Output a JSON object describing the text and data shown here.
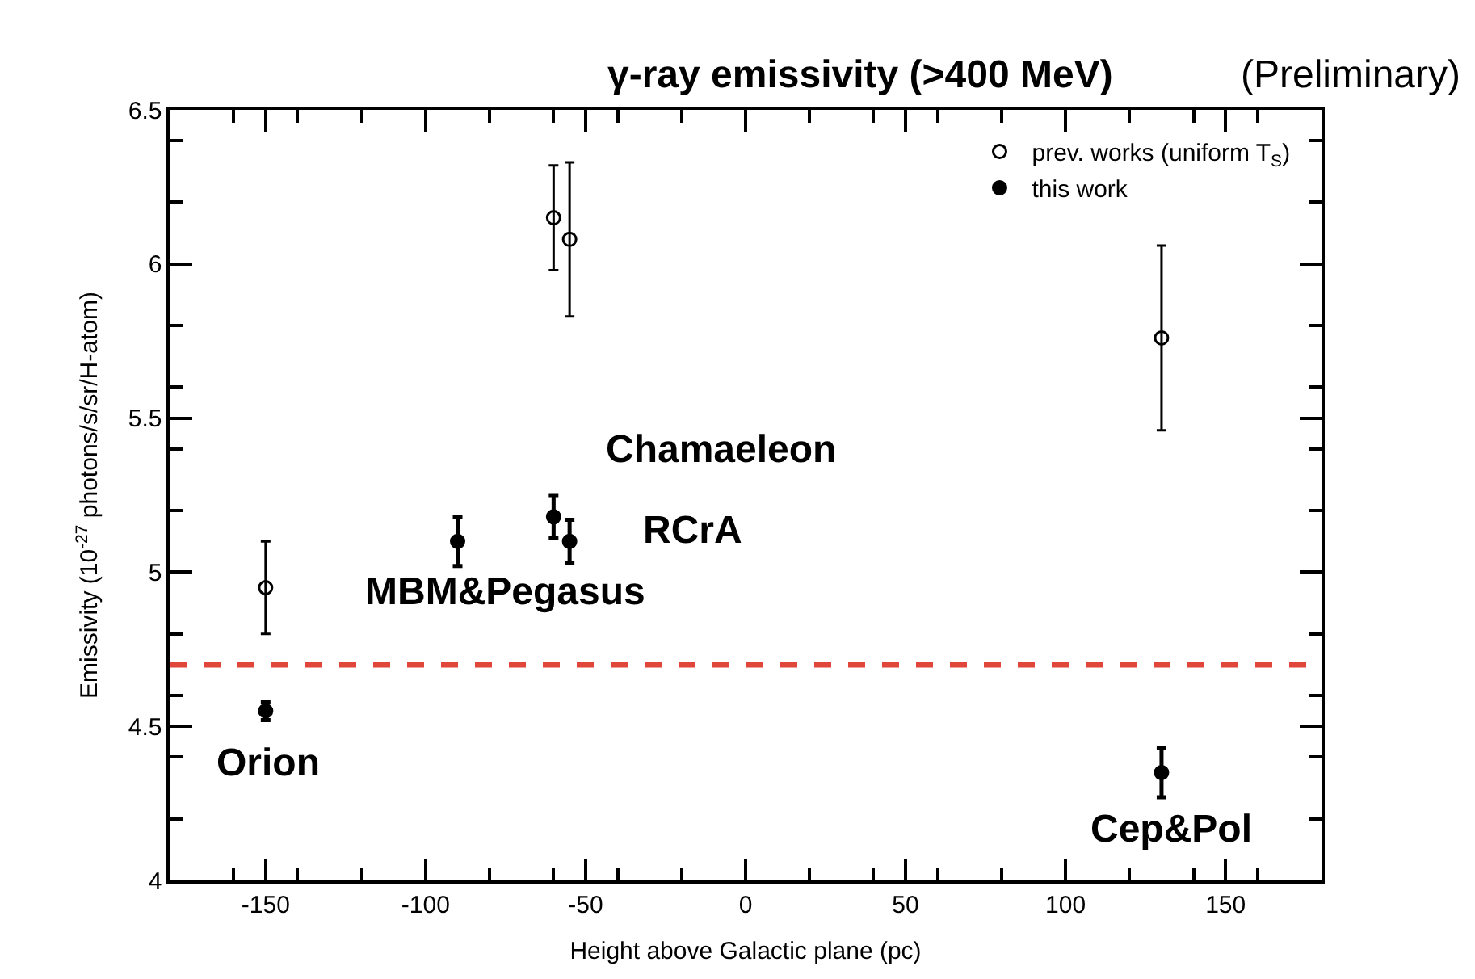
{
  "chart_data": {
    "type": "scatter",
    "title": "γ-ray emissivity (>400 MeV)",
    "subtitle": "(Preliminary)",
    "xlabel": "Height above Galactic plane (pc)",
    "ylabel": "Emissivity (10$^{-27}$ photons/s/sr/H-atom)",
    "xlim": [
      -180,
      180
    ],
    "xticks": [
      -150,
      -100,
      -50,
      0,
      50,
      100,
      150
    ],
    "ylim": [
      4,
      6.5
    ],
    "yticks": [
      4,
      4.5,
      5,
      5.5,
      6,
      6.5
    ],
    "series": [
      {
        "name": "prev. works (uniform T$_{S}$)",
        "color": "#000000",
        "marker": "circle-open",
        "x": [
          -150,
          -60,
          -55,
          130
        ],
        "values": [
          4.95,
          6.15,
          6.08,
          5.76
        ],
        "errors": [
          0.15,
          0.17,
          0.25,
          0.3
        ],
        "line_style": "dotted"
      },
      {
        "name": "this work",
        "color": "#000000",
        "marker": "circle",
        "x": [
          -150,
          -90,
          -60,
          -55,
          130
        ],
        "values": [
          4.55,
          5.1,
          5.18,
          5.1,
          4.35
        ],
        "errors": [
          0.03,
          0.08,
          0.07,
          0.07,
          0.08
        ],
        "line_style": "solid"
      }
    ],
    "ref_lines": [
      {
        "axis": "y",
        "value": 4.7,
        "color": "#e0473a",
        "line_style": "dashed"
      }
    ],
    "annotations": [
      {
        "text": "Orion",
        "x": -150,
        "y": 4.55
      },
      {
        "text": "MBM&Pegasus",
        "x": -90,
        "y": 5.1
      },
      {
        "text": "Chamaeleon",
        "x": -60,
        "y": 5.18
      },
      {
        "text": "RCrA",
        "x": -55,
        "y": 5.1
      },
      {
        "text": "Cep&Pol",
        "x": 130,
        "y": 4.35
      }
    ],
    "legend": "top right"
  }
}
